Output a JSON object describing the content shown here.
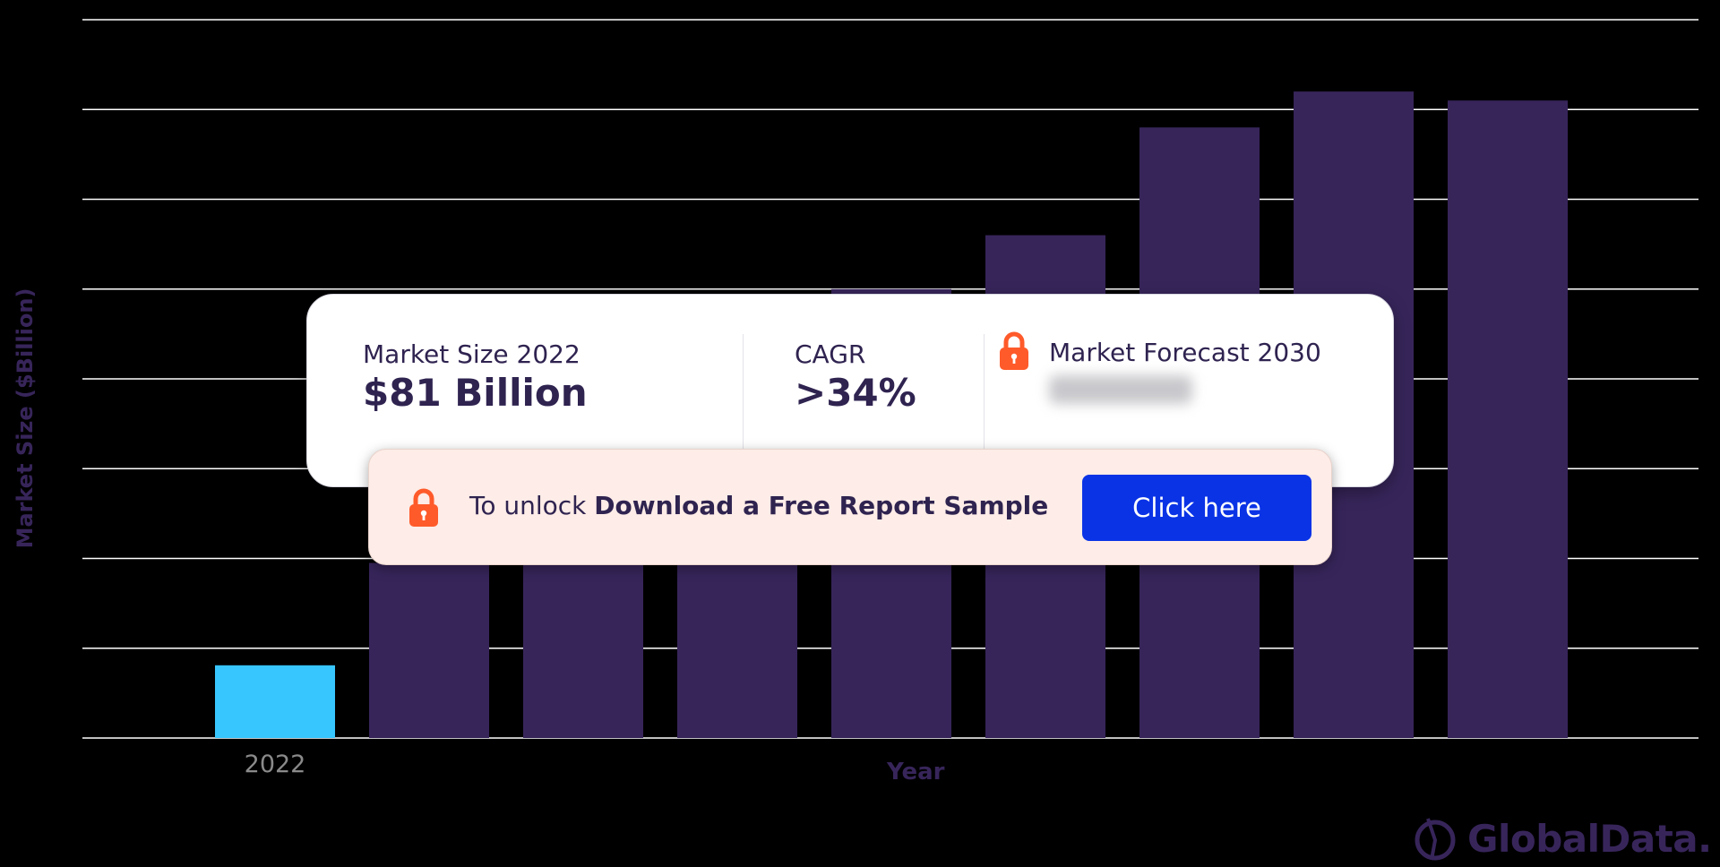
{
  "chart_data": {
    "type": "bar",
    "categories": [
      "2022",
      "",
      "",
      "",
      "",
      "",
      "",
      "",
      ""
    ],
    "values": [
      81,
      195,
      260,
      340,
      500,
      560,
      680,
      720,
      710
    ],
    "highlight_index": 0,
    "colors": {
      "highlight": "#38c6ff",
      "default": "#37255a",
      "grid": "#ffffff"
    },
    "ylim": [
      0,
      800
    ],
    "grid": true,
    "xlabel": "Year",
    "ylabel": "Market Size ($Billion)",
    "title": ""
  },
  "overlay": {
    "market_size_label": "Market Size 2022",
    "market_size_value": "$81 Billion",
    "cagr_label": "CAGR",
    "cagr_value": ">34%",
    "forecast_label": "Market Forecast 2030"
  },
  "unlock": {
    "prefix": "To unlock ",
    "bold_text": "Download a Free Report Sample",
    "button_label": "Click here"
  },
  "brand": {
    "name": "GlobalData."
  },
  "icons": {
    "lock": "lock-icon",
    "logo": "globaldata-logo-icon"
  },
  "accent_color": "#ff5a2a"
}
